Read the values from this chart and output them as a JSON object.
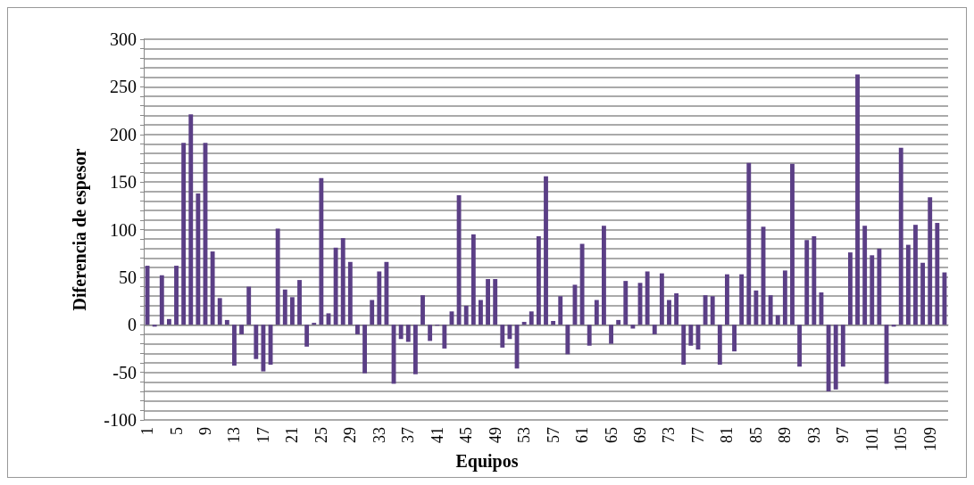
{
  "chart_data": {
    "type": "bar",
    "xlabel": "Equipos",
    "ylabel": "Diferencia de espesor",
    "categories": [
      "1",
      null,
      null,
      null,
      "5",
      null,
      null,
      null,
      "9",
      null,
      null,
      null,
      "13",
      null,
      null,
      null,
      "17",
      null,
      null,
      null,
      "21",
      null,
      null,
      null,
      "25",
      null,
      null,
      null,
      "29",
      null,
      null,
      null,
      "33",
      null,
      null,
      null,
      "37",
      null,
      null,
      null,
      "41",
      null,
      null,
      null,
      "45",
      null,
      null,
      null,
      "49",
      null,
      null,
      null,
      "53",
      null,
      null,
      null,
      "57",
      null,
      null,
      null,
      "61",
      null,
      null,
      null,
      "65",
      null,
      null,
      null,
      "69",
      null,
      null,
      null,
      "73",
      null,
      null,
      null,
      "77",
      null,
      null,
      null,
      "81",
      null,
      null,
      null,
      "85",
      null,
      null,
      null,
      "89",
      null,
      null,
      null,
      "93",
      null,
      null,
      null,
      "97",
      null,
      null,
      null,
      "101",
      null,
      null,
      null,
      "105",
      null,
      null,
      null,
      "109",
      null,
      null
    ],
    "values": [
      62,
      -2,
      52,
      6,
      62,
      191,
      221,
      138,
      191,
      77,
      28,
      5,
      -43,
      -10,
      40,
      -36,
      -49,
      -42,
      101,
      37,
      29,
      47,
      -23,
      2,
      154,
      12,
      81,
      91,
      66,
      -10,
      -51,
      26,
      56,
      66,
      -62,
      -15,
      -18,
      -52,
      31,
      -17,
      -1,
      -25,
      14,
      136,
      20,
      95,
      26,
      48,
      48,
      -24,
      -15,
      -46,
      3,
      14,
      93,
      156,
      4,
      30,
      -31,
      42,
      85,
      -22,
      26,
      104,
      -20,
      5,
      46,
      -4,
      44,
      56,
      -10,
      54,
      26,
      33,
      -42,
      -22,
      -26,
      31,
      30,
      -42,
      53,
      -28,
      53,
      170,
      36,
      103,
      31,
      10,
      57,
      169,
      -44,
      89,
      93,
      34,
      -70,
      -68,
      -44,
      76,
      263,
      104,
      73,
      80,
      -62,
      -2,
      186,
      84,
      105,
      65,
      134,
      107,
      55
    ],
    "color": "#5b3f86",
    "ylim": [
      -100,
      300
    ],
    "yticks": [
      -100,
      {
        "value": -90,
        "label": null
      },
      {
        "value": -80,
        "label": null
      },
      {
        "value": -70,
        "label": null
      },
      {
        "value": -60,
        "label": null
      },
      -50,
      {
        "value": -40,
        "label": null
      },
      {
        "value": -30,
        "label": null
      },
      {
        "value": -20,
        "label": null
      },
      {
        "value": -10,
        "label": null
      },
      0,
      {
        "value": 10,
        "label": null
      },
      {
        "value": 20,
        "label": null
      },
      {
        "value": 30,
        "label": null
      },
      {
        "value": 40,
        "label": null
      },
      50,
      {
        "value": 60,
        "label": null
      },
      {
        "value": 70,
        "label": null
      },
      {
        "value": 80,
        "label": null
      },
      {
        "value": 90,
        "label": null
      },
      100,
      {
        "value": 110,
        "label": null
      },
      {
        "value": 120,
        "label": null
      },
      {
        "value": 130,
        "label": null
      },
      {
        "value": 140,
        "label": null
      },
      150,
      {
        "value": 160,
        "label": null
      },
      {
        "value": 170,
        "label": null
      },
      {
        "value": 180,
        "label": null
      },
      {
        "value": 190,
        "label": null
      },
      200,
      {
        "value": 210,
        "label": null
      },
      {
        "value": 220,
        "label": null
      },
      {
        "value": 230,
        "label": null
      },
      {
        "value": 240,
        "label": null
      },
      250,
      {
        "value": 260,
        "label": null
      },
      {
        "value": 270,
        "label": null
      },
      {
        "value": 280,
        "label": null
      },
      {
        "value": 290,
        "label": null
      },
      300
    ],
    "grid": "y"
  }
}
